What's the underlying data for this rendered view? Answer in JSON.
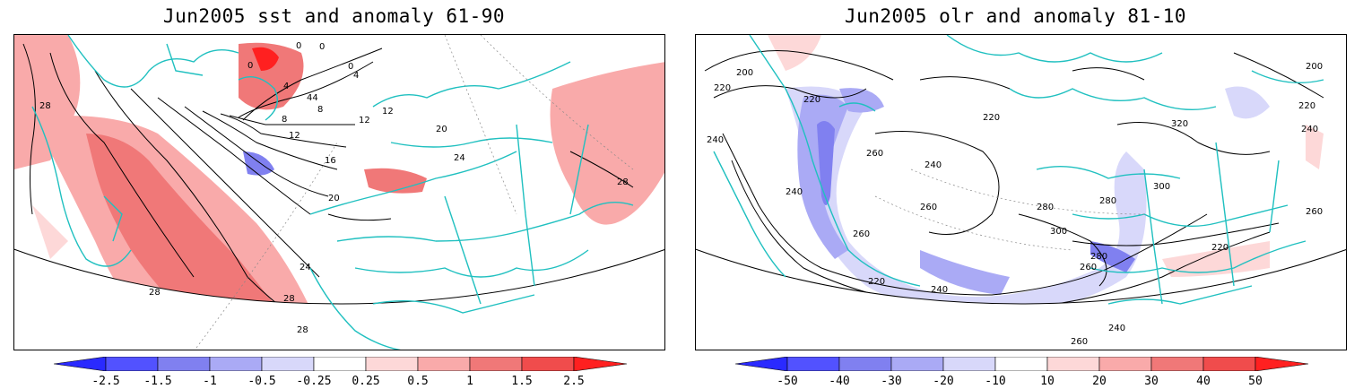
{
  "panels": [
    {
      "title": "Jun2005 sst and anomaly 61-90",
      "colorbar": {
        "labels": [
          "-2.5",
          "-1.5",
          "-1",
          "-0.5",
          "-0.25",
          "0.25",
          "0.5",
          "1",
          "1.5",
          "2.5"
        ],
        "colors": [
          "#2a2aff",
          "#5252ff",
          "#8080f0",
          "#aaaaf5",
          "#d8d8fa",
          "#ffffff",
          "#fdd8d8",
          "#f9aaaa",
          "#f07878",
          "#f04c4c",
          "#ff2020"
        ]
      },
      "contour_labels": [
        "28",
        "28",
        "28",
        "28",
        "24",
        "20",
        "16",
        "12",
        "8",
        "4",
        "44",
        "0",
        "0",
        "0",
        "12",
        "12",
        "20",
        "24",
        "28",
        "8",
        "4",
        "0"
      ]
    },
    {
      "title": "Jun2005 olr and anomaly 81-10",
      "colorbar": {
        "labels": [
          "-50",
          "-40",
          "-30",
          "-20",
          "-10",
          "10",
          "20",
          "30",
          "40",
          "50"
        ],
        "colors": [
          "#2a2aff",
          "#5252ff",
          "#8080f0",
          "#aaaaf5",
          "#d8d8fa",
          "#ffffff",
          "#fdd8d8",
          "#f9aaaa",
          "#f07878",
          "#f04c4c",
          "#ff2020"
        ]
      },
      "contour_labels": [
        "200",
        "220",
        "240",
        "260",
        "280",
        "300",
        "320",
        "260",
        "240",
        "220",
        "220",
        "240",
        "260",
        "280",
        "220",
        "240",
        "260",
        "280",
        "300",
        "260",
        "240",
        "220",
        "200",
        "220",
        "240",
        "260"
      ]
    }
  ]
}
